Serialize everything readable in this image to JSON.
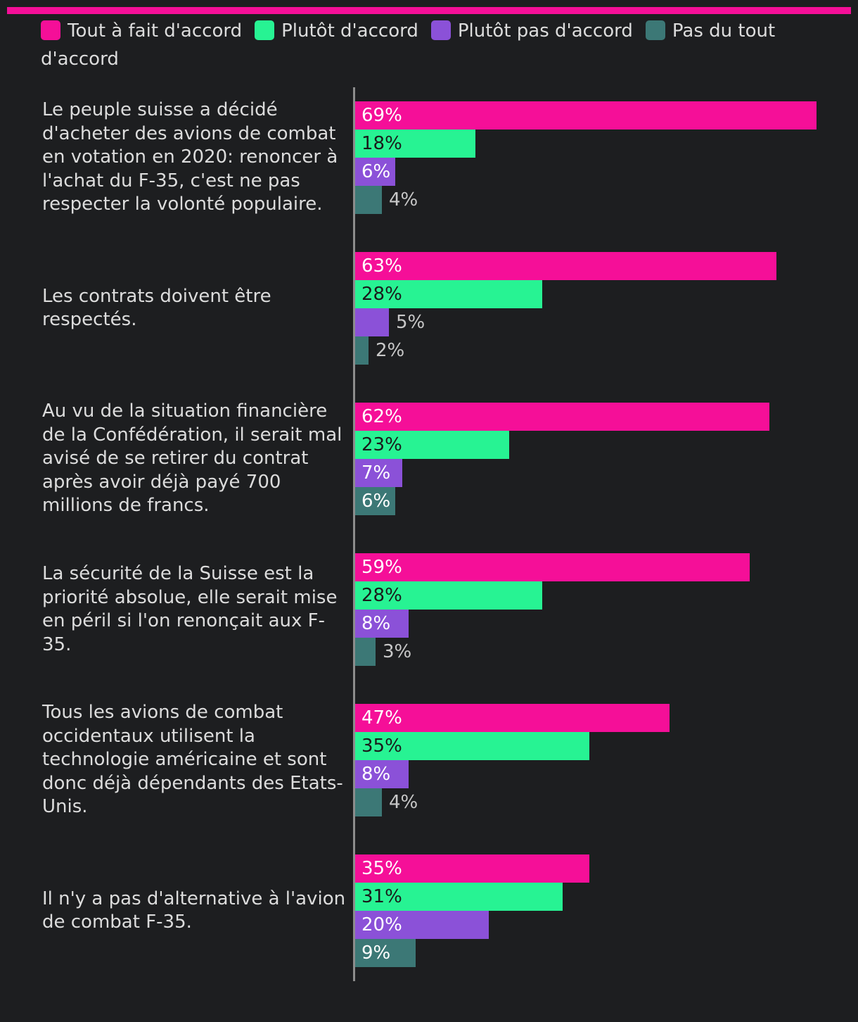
{
  "colors": {
    "background": "#1d1e20",
    "accent": "#f50f98",
    "tout_a_fait": "#f50f98",
    "plutot": "#27f393",
    "plutot_pas": "#8b51d8",
    "pas_du_tout": "#3c7876"
  },
  "chart_data": {
    "type": "bar",
    "orientation": "horizontal",
    "unit": "%",
    "xlim": [
      0,
      70
    ],
    "legend_position": "top",
    "grid": false,
    "categories": [
      "Le peuple suisse a décidé d'acheter des avions de combat en votation en 2020: renoncer à l'achat du F-35, c'est ne pas respecter la volonté populaire.",
      "Les contrats doivent être respectés.",
      "Au vu de la situation financière de la Confédération, il serait mal avisé de se retirer du contrat après avoir déjà payé 700 millions de francs.",
      "La sécurité de la Suisse est la priorité absolue, elle serait mise en péril si l'on renonçait aux F-35.",
      "Tous les avions de combat occidentaux utilisent la technologie américaine et sont donc déjà dépendants des Etats-Unis.",
      "Il n'y a pas d'alternative à l'avion de combat F-35."
    ],
    "series": [
      {
        "name": "Tout à fait d'accord",
        "color": "#f50f98",
        "values": [
          69,
          63,
          62,
          59,
          47,
          35
        ]
      },
      {
        "name": "Plutôt d'accord",
        "color": "#27f393",
        "values": [
          18,
          28,
          23,
          28,
          35,
          31
        ]
      },
      {
        "name": "Plutôt pas d'accord",
        "color": "#8b51d8",
        "values": [
          6,
          5,
          7,
          8,
          8,
          20
        ]
      },
      {
        "name": "Pas du tout d'accord",
        "color": "#3c7876",
        "values": [
          4,
          2,
          6,
          3,
          4,
          9
        ]
      }
    ]
  }
}
